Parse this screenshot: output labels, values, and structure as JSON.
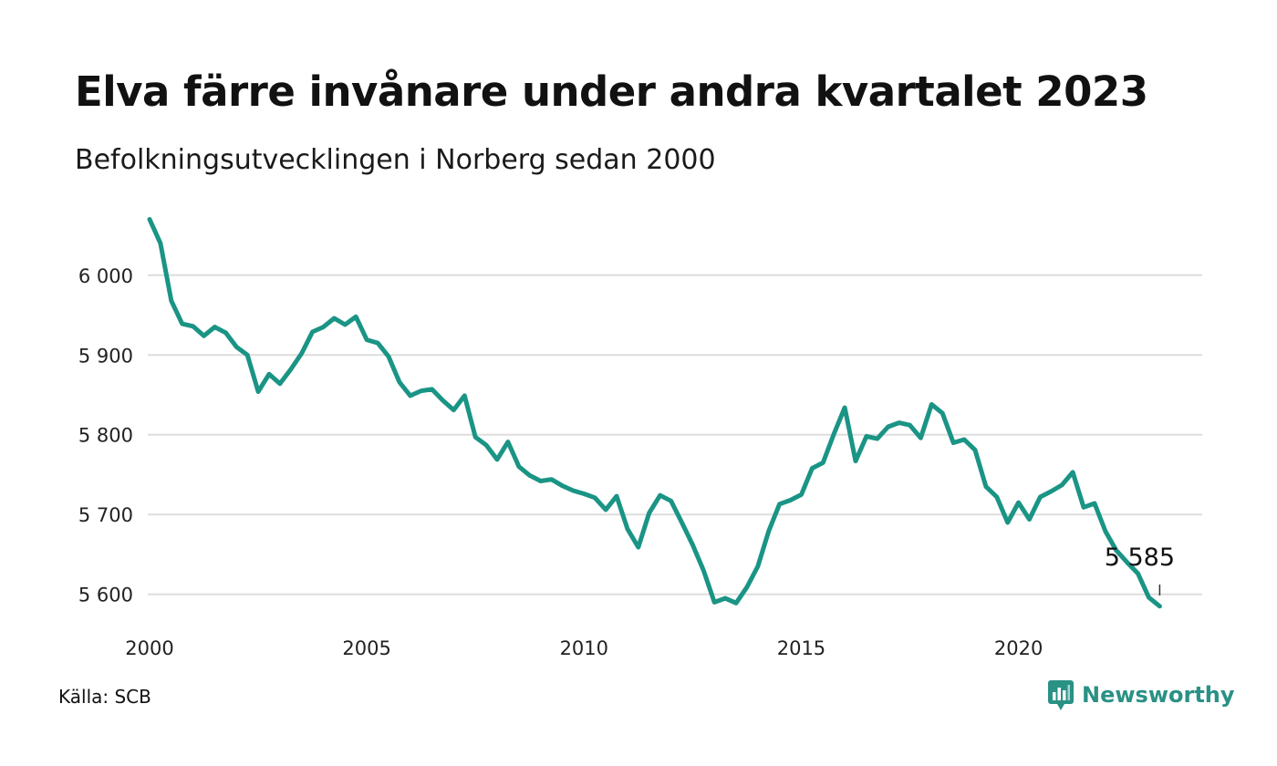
{
  "title": "Elva färre invånare under andra kvartalet 2023",
  "subtitle": "Befolkningsutvecklingen i Norberg sedan 2000",
  "source": "Källa: SCB",
  "brand": "Newsworthy",
  "colors": {
    "line": "#1a9485",
    "grid": "#dddddd",
    "brand": "#2a9185"
  },
  "chart_data": {
    "type": "line",
    "title": "Elva färre invånare under andra kvartalet 2023",
    "subtitle": "Befolkningsutvecklingen i Norberg sedan 2000",
    "xlabel": "",
    "ylabel": "",
    "xlim": [
      2000,
      2023.25
    ],
    "ylim": [
      5580,
      6080
    ],
    "x_ticks": [
      2000,
      2005,
      2010,
      2015,
      2020
    ],
    "x_tick_labels": [
      "2000",
      "2005",
      "2010",
      "2015",
      "2020"
    ],
    "y_ticks": [
      5600,
      5700,
      5800,
      5900,
      6000
    ],
    "y_tick_labels": [
      "5 600",
      "5 700",
      "5 800",
      "5 900",
      "6 000"
    ],
    "grid": "horizontal",
    "end_label": "5 585",
    "series": [
      {
        "x": [
          2000.0,
          2000.25,
          2000.5,
          2000.75,
          2001.0,
          2001.25,
          2001.5,
          2001.75,
          2002.0,
          2002.25,
          2002.5,
          2002.75,
          2003.0,
          2003.25,
          2003.5,
          2003.75,
          2004.0,
          2004.25,
          2004.5,
          2004.75,
          2005.0,
          2005.25,
          2005.5,
          2005.75,
          2006.0,
          2006.25,
          2006.5,
          2006.75,
          2007.0,
          2007.25,
          2007.5,
          2007.75,
          2008.0,
          2008.25,
          2008.5,
          2008.75,
          2009.0,
          2009.25,
          2009.5,
          2009.75,
          2010.0,
          2010.25,
          2010.5,
          2010.75,
          2011.0,
          2011.25,
          2011.5,
          2011.75,
          2012.0,
          2012.25,
          2012.5,
          2012.75,
          2013.0,
          2013.25,
          2013.5,
          2013.75,
          2014.0,
          2014.25,
          2014.5,
          2014.75,
          2015.0,
          2015.25,
          2015.5,
          2015.75,
          2016.0,
          2016.25,
          2016.5,
          2016.75,
          2017.0,
          2017.25,
          2017.5,
          2017.75,
          2018.0,
          2018.25,
          2018.5,
          2018.75,
          2019.0,
          2019.25,
          2019.5,
          2019.75,
          2020.0,
          2020.25,
          2020.5,
          2020.75,
          2021.0,
          2021.25,
          2021.5,
          2021.75,
          2022.0,
          2022.25,
          2022.5,
          2022.75,
          2023.0,
          2023.25
        ],
        "values": [
          6070,
          6040,
          5968,
          5939,
          5936,
          5924,
          5935,
          5928,
          5910,
          5900,
          5854,
          5876,
          5864,
          5882,
          5902,
          5929,
          5935,
          5946,
          5938,
          5948,
          5919,
          5915,
          5898,
          5866,
          5849,
          5855,
          5857,
          5843,
          5831,
          5849,
          5797,
          5787,
          5769,
          5791,
          5760,
          5749,
          5742,
          5744,
          5736,
          5730,
          5726,
          5721,
          5706,
          5723,
          5682,
          5659,
          5702,
          5724,
          5717,
          5690,
          5662,
          5630,
          5590,
          5595,
          5589,
          5609,
          5635,
          5679,
          5713,
          5718,
          5725,
          5758,
          5765,
          5801,
          5834,
          5767,
          5798,
          5795,
          5810,
          5815,
          5812,
          5796,
          5838,
          5827,
          5790,
          5794,
          5781,
          5735,
          5722,
          5690,
          5715,
          5694,
          5722,
          5729,
          5737,
          5753,
          5709,
          5714,
          5679,
          5655,
          5640,
          5626,
          5596,
          5585
        ]
      }
    ]
  }
}
